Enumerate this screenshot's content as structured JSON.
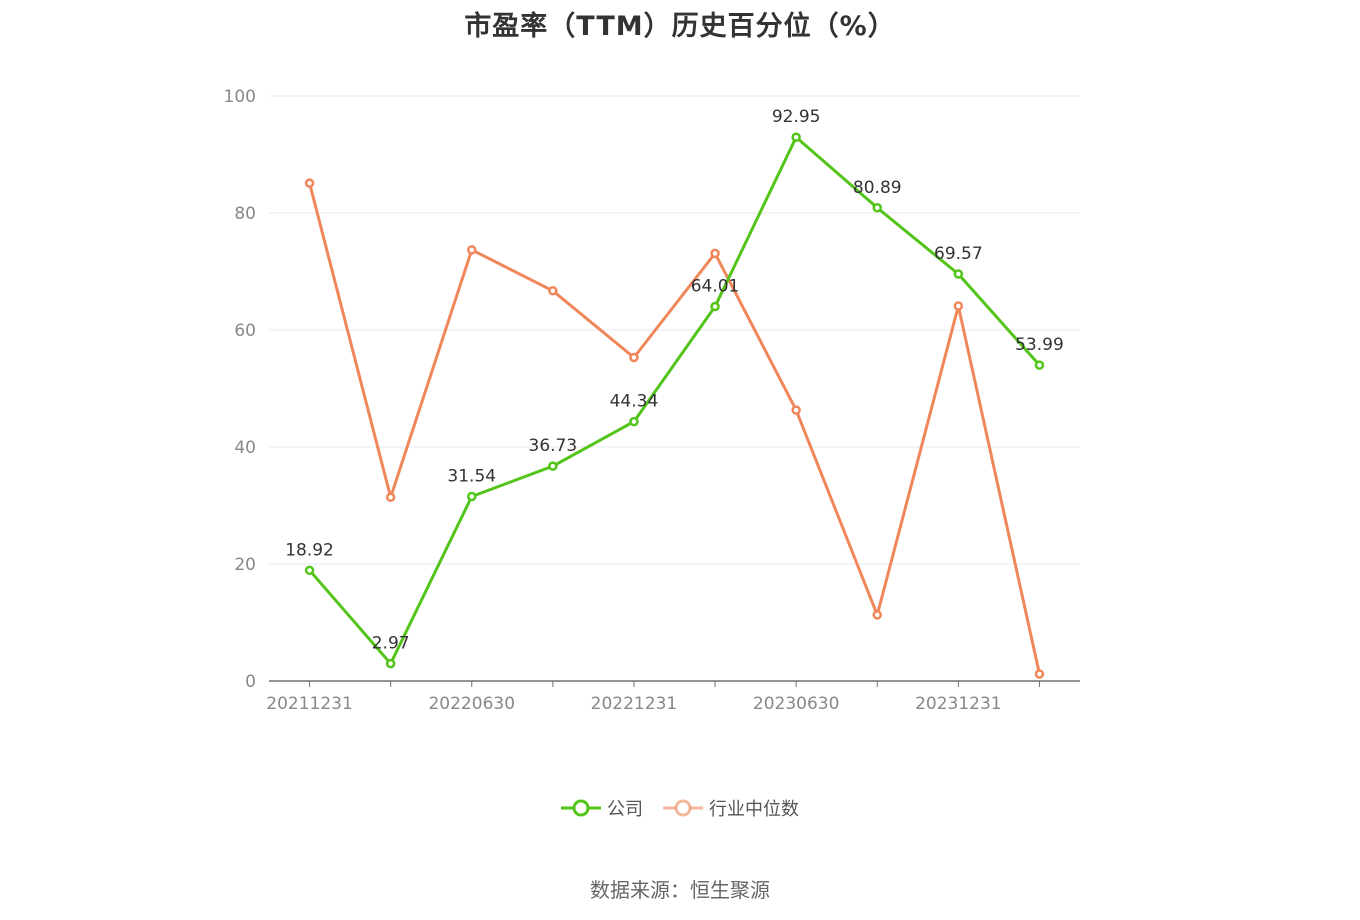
{
  "colors": {
    "company": "#52c41a",
    "industry": "#f0875a",
    "grid": "#e6e8ef",
    "axis": "#6e7079",
    "tick_text": "#888888",
    "label_text": "#333333"
  },
  "legend": {
    "company_label": "公司",
    "industry_label": "行业中位数"
  },
  "source": "数据来源：恒生聚源",
  "chart_data": {
    "type": "line",
    "title": "市盈率（TTM）历史百分位（%）",
    "xlabel": "",
    "ylabel": "",
    "ylim": [
      0,
      100
    ],
    "yticks": [
      0,
      20,
      40,
      60,
      80,
      100
    ],
    "grid": true,
    "legend_position": "bottom",
    "x": [
      "20211231",
      "20220331",
      "20220630",
      "20220930",
      "20221231",
      "20230331",
      "20230630",
      "20230930",
      "20231231",
      "20240331"
    ],
    "x_tick_labels": [
      "20211231",
      "",
      "20220630",
      "",
      "20221231",
      "",
      "20230630",
      "",
      "20231231",
      ""
    ],
    "series": [
      {
        "name": "公司",
        "values": [
          18.92,
          2.97,
          31.54,
          36.73,
          44.34,
          64.01,
          92.95,
          80.89,
          69.57,
          53.99
        ],
        "labels": [
          "18.92",
          "2.97",
          "31.54",
          "36.73",
          "44.34",
          "64.01",
          "92.95",
          "80.89",
          "69.57",
          "53.99"
        ]
      },
      {
        "name": "行业中位数",
        "values": [
          85.1,
          31.4,
          73.7,
          66.7,
          55.3,
          73.1,
          46.3,
          11.3,
          64.1,
          1.2
        ]
      }
    ]
  }
}
